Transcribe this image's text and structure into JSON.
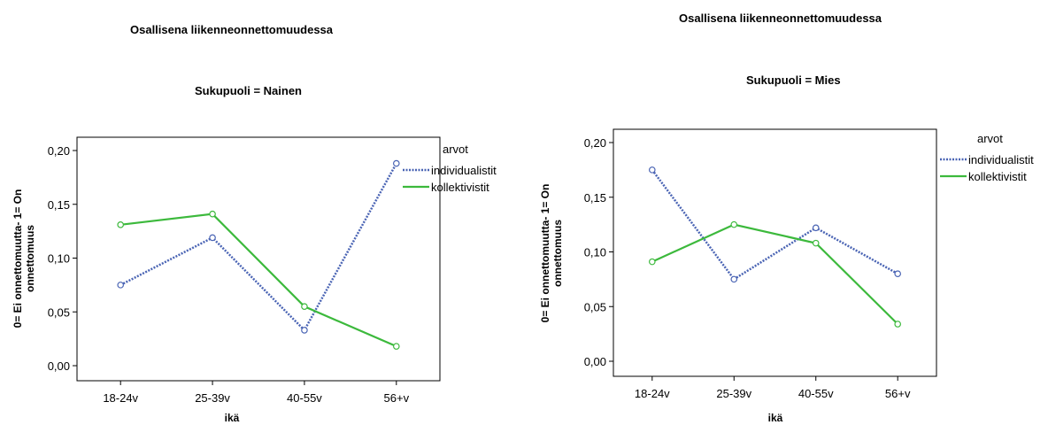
{
  "chart_data": [
    {
      "type": "line",
      "title": "Osallisena liikenneonnettomuudessa",
      "subtitle": "Sukupuoli = Nainen",
      "xlabel": "ikä",
      "ylabel": "0= Ei onnettomuutta- 1= On onnettomuus",
      "categories": [
        "18-24v",
        "25-39v",
        "40-55v",
        "56+v"
      ],
      "ylim": [
        0,
        0.2
      ],
      "yticks": [
        "0,00",
        "0,05",
        "0,10",
        "0,15",
        "0,20"
      ],
      "legend_title": "arvot",
      "legend_position": "right",
      "series": [
        {
          "name": "individualistit",
          "values": [
            0.075,
            0.119,
            0.033,
            0.188
          ],
          "color": "#4a64b4",
          "style": "dotted"
        },
        {
          "name": "kollektivistit",
          "values": [
            0.131,
            0.141,
            0.055,
            0.018
          ],
          "color": "#3cb93c",
          "style": "solid"
        }
      ]
    },
    {
      "type": "line",
      "title": "Osallisena liikenneonnettomuudessa",
      "subtitle": "Sukupuoli = Mies",
      "xlabel": "ikä",
      "ylabel": "0= Ei onnettomuutta- 1= On onnettomuus",
      "categories": [
        "18-24v",
        "25-39v",
        "40-55v",
        "56+v"
      ],
      "ylim": [
        0,
        0.2
      ],
      "yticks": [
        "0,00",
        "0,05",
        "0,10",
        "0,15",
        "0,20"
      ],
      "legend_title": "arvot",
      "legend_position": "right",
      "series": [
        {
          "name": "individualistit",
          "values": [
            0.175,
            0.075,
            0.122,
            0.08
          ],
          "color": "#4a64b4",
          "style": "dotted"
        },
        {
          "name": "kollektivistit",
          "values": [
            0.091,
            0.125,
            0.108,
            0.034
          ],
          "color": "#3cb93c",
          "style": "solid"
        }
      ]
    }
  ]
}
